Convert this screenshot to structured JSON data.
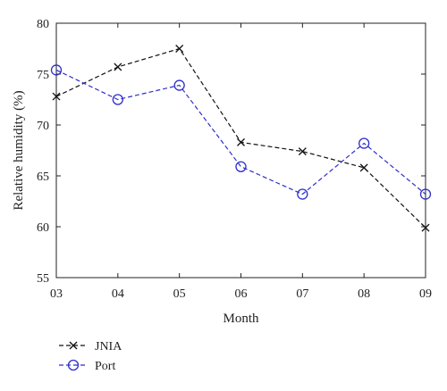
{
  "chart_data": {
    "type": "line",
    "title": "",
    "xlabel": "Month",
    "ylabel": "Relative humidity (%)",
    "categories": [
      "03",
      "04",
      "05",
      "06",
      "07",
      "08",
      "09"
    ],
    "ylim": [
      55,
      80
    ],
    "yticks": [
      55,
      60,
      65,
      70,
      75,
      80
    ],
    "grid": false,
    "legend_position": "bottom-left, outside",
    "series": [
      {
        "name": "JNIA",
        "values": [
          72.8,
          75.7,
          77.5,
          68.3,
          67.4,
          65.8,
          59.9
        ],
        "color": "#111111",
        "marker": "x",
        "line_style": "dashed"
      },
      {
        "name": "Port",
        "values": [
          75.4,
          72.5,
          73.9,
          65.9,
          63.2,
          68.2,
          63.2
        ],
        "color": "#2e2ecc",
        "marker": "circle",
        "line_style": "dashed"
      }
    ]
  }
}
